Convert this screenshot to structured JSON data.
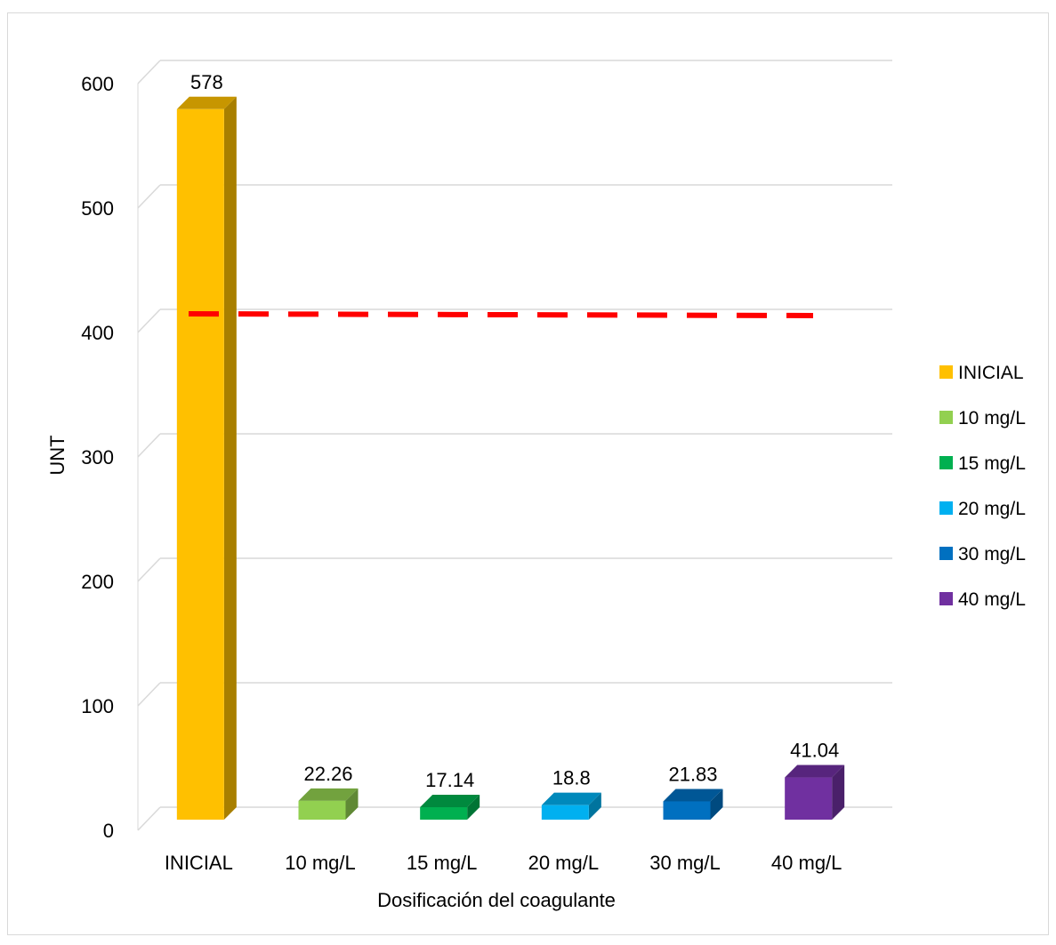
{
  "chart_data": {
    "type": "bar",
    "title": "",
    "xlabel": "Dosificación del coagulante",
    "ylabel": "UNT",
    "ylim": [
      0,
      600
    ],
    "yticks": [
      0,
      100,
      200,
      300,
      400,
      500,
      600
    ],
    "categories": [
      "INICIAL",
      "10 mg/L",
      "15 mg/L",
      "20 mg/L",
      "30 mg/L",
      "40 mg/L"
    ],
    "values": [
      578,
      22.26,
      17.14,
      18.8,
      21.83,
      41.04
    ],
    "data_labels": [
      "578",
      "22.26",
      "17.14",
      "18.8",
      "21.83",
      "41.04"
    ],
    "colors": [
      "#FFC000",
      "#92D050",
      "#00B050",
      "#00B0F0",
      "#0070C0",
      "#7030A0"
    ],
    "legend": {
      "placement": "right",
      "entries": [
        "INICIAL",
        "10 mg/L",
        "15 mg/L",
        "20 mg/L",
        "30 mg/L",
        "40 mg/L"
      ]
    },
    "reference_line": {
      "value": 415,
      "color": "#FF0000",
      "style": "dashed"
    },
    "grid": true,
    "style": "3d-column"
  }
}
